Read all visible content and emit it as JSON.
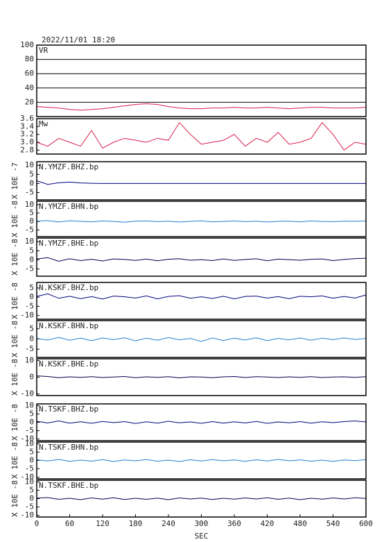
{
  "chart_data": [
    {
      "type": "line",
      "title": "2022/11/01 18:20",
      "x": [
        0,
        20,
        40,
        60,
        80,
        100,
        120,
        140,
        160,
        180,
        200,
        220,
        240,
        260,
        280,
        300,
        320,
        340,
        360,
        380,
        400,
        420,
        440,
        460,
        480,
        500,
        520,
        540,
        560,
        580,
        600
      ],
      "xlim": [
        0,
        600
      ],
      "ylim": [
        0,
        100
      ],
      "yticks": [
        20,
        40,
        60,
        80,
        100
      ],
      "grid": true,
      "series": [
        {
          "name": "VR",
          "color": "#d81b4a",
          "values": [
            14,
            13,
            12,
            10,
            9,
            10,
            11,
            13,
            15,
            17,
            18,
            17,
            14,
            12,
            11,
            11,
            12,
            12,
            13,
            12,
            12,
            13,
            12,
            11,
            12,
            13,
            13,
            12,
            12,
            12,
            13
          ]
        }
      ]
    },
    {
      "type": "line",
      "x": [
        0,
        20,
        40,
        60,
        80,
        100,
        120,
        140,
        160,
        180,
        200,
        220,
        240,
        260,
        280,
        300,
        320,
        340,
        360,
        380,
        400,
        420,
        440,
        460,
        480,
        500,
        520,
        540,
        560,
        580,
        600
      ],
      "xlim": [
        0,
        600
      ],
      "ylim": [
        2.7,
        3.6
      ],
      "yticks": [
        {
          "value": 2.8,
          "label": "2.8"
        },
        {
          "value": 3,
          "label": "3.0"
        },
        {
          "value": 3.2,
          "label": "3.2"
        },
        {
          "value": 3.4,
          "label": "3.4"
        },
        {
          "value": 3.6,
          "label": "3.6"
        }
      ],
      "series": [
        {
          "name": "Mw",
          "color": "#d81b4a",
          "values": [
            3.0,
            2.9,
            3.1,
            3.0,
            2.9,
            3.3,
            2.85,
            3.0,
            3.1,
            3.05,
            3.0,
            3.1,
            3.05,
            3.5,
            3.2,
            2.95,
            3.0,
            3.05,
            3.2,
            2.9,
            3.1,
            3.0,
            3.25,
            2.95,
            3.0,
            3.1,
            3.5,
            3.2,
            2.8,
            3.0,
            2.95
          ]
        }
      ]
    },
    {
      "type": "line",
      "ylabel": "X 10E -7",
      "x": [
        0,
        20,
        40,
        60,
        80,
        100,
        120,
        140,
        160,
        180,
        200,
        220,
        240,
        260,
        280,
        300,
        320,
        340,
        360,
        380,
        400,
        420,
        440,
        460,
        480,
        500,
        520,
        540,
        560,
        580,
        600
      ],
      "xlim": [
        0,
        600
      ],
      "ylim": [
        -9,
        12
      ],
      "yticks": [
        -5,
        0,
        5,
        10
      ],
      "series": [
        {
          "name": "N.YMZF.BHZ.bp",
          "color": "#00007f",
          "values": [
            1.5,
            -0.5,
            0.4,
            0.8,
            0.3,
            0.1,
            0,
            0,
            0,
            0,
            0,
            0,
            0,
            0,
            0,
            0,
            0,
            0,
            0,
            0,
            0,
            0,
            0,
            0,
            0,
            0,
            0,
            0,
            0,
            0,
            0
          ]
        }
      ]
    },
    {
      "type": "line",
      "ylabel": "X 10E -8",
      "x": [
        0,
        20,
        40,
        60,
        80,
        100,
        120,
        140,
        160,
        180,
        200,
        220,
        240,
        260,
        280,
        300,
        320,
        340,
        360,
        380,
        400,
        420,
        440,
        460,
        480,
        500,
        520,
        540,
        560,
        580,
        600
      ],
      "xlim": [
        0,
        600
      ],
      "ylim": [
        -9,
        12
      ],
      "yticks": [
        -5,
        0,
        5,
        10
      ],
      "series": [
        {
          "name": "N.YMZF.BHN.bp",
          "color": "#1f7fd0",
          "values": [
            0.2,
            0.5,
            -0.3,
            0.4,
            0.1,
            -0.2,
            0.3,
            0,
            -0.4,
            0.2,
            0.3,
            -0.1,
            0.2,
            -0.3,
            0.1,
            0.4,
            -0.2,
            0,
            0.3,
            -0.1,
            0.2,
            -0.3,
            0.1,
            0.2,
            -0.2,
            0.3,
            0,
            -0.1,
            0.2,
            0.1,
            0.3
          ]
        }
      ]
    },
    {
      "type": "line",
      "ylabel": "X 10E -8",
      "x": [
        0,
        20,
        40,
        60,
        80,
        100,
        120,
        140,
        160,
        180,
        200,
        220,
        240,
        260,
        280,
        300,
        320,
        340,
        360,
        380,
        400,
        420,
        440,
        460,
        480,
        500,
        520,
        540,
        560,
        580,
        600
      ],
      "xlim": [
        0,
        600
      ],
      "ylim": [
        -9,
        12
      ],
      "yticks": [
        -5,
        0,
        5,
        10
      ],
      "series": [
        {
          "name": "N.YMZF.BHE.bp",
          "color": "#000050",
          "values": [
            0.5,
            1.2,
            -0.8,
            0.6,
            -0.4,
            0.3,
            -0.6,
            0.5,
            0.2,
            -0.3,
            0.4,
            -0.5,
            0.3,
            0.6,
            -0.2,
            0.1,
            -0.4,
            0.5,
            -0.3,
            0.2,
            0.6,
            -0.5,
            0.4,
            0.1,
            -0.2,
            0.3,
            0.5,
            -0.4,
            0.2,
            0.7,
            0.9
          ]
        }
      ]
    },
    {
      "type": "line",
      "ylabel": "X 10E -8",
      "x": [
        0,
        20,
        40,
        60,
        80,
        100,
        120,
        140,
        160,
        180,
        200,
        220,
        240,
        260,
        280,
        300,
        320,
        340,
        360,
        380,
        400,
        420,
        440,
        460,
        480,
        500,
        520,
        540,
        560,
        580,
        600
      ],
      "xlim": [
        0,
        600
      ],
      "ylim": [
        -12,
        8
      ],
      "yticks": [
        -10,
        -5,
        0,
        5
      ],
      "series": [
        {
          "name": "N.KSKF.BHZ.bp",
          "color": "#00007f",
          "values": [
            0.4,
            1.8,
            -0.6,
            0.5,
            -0.8,
            0.3,
            -1.0,
            0.6,
            0.2,
            -0.5,
            0.7,
            -0.9,
            0.4,
            0.8,
            -0.6,
            0.2,
            -0.7,
            0.5,
            -0.9,
            0.4,
            0.6,
            -0.5,
            0.3,
            -0.8,
            0.5,
            0.2,
            0.7,
            -0.6,
            0.4,
            -0.5,
            1.2
          ]
        }
      ]
    },
    {
      "type": "line",
      "ylabel": "X 10E -8",
      "x": [
        0,
        20,
        40,
        60,
        80,
        100,
        120,
        140,
        160,
        180,
        200,
        220,
        240,
        260,
        280,
        300,
        320,
        340,
        360,
        380,
        400,
        420,
        440,
        460,
        480,
        500,
        520,
        540,
        560,
        580,
        600
      ],
      "xlim": [
        0,
        600
      ],
      "ylim": [
        -9,
        9
      ],
      "yticks": [
        -5,
        0,
        5
      ],
      "series": [
        {
          "name": "N.KSKF.BHN.bp",
          "color": "#1f7fd0",
          "values": [
            0.3,
            -0.5,
            0.8,
            -0.6,
            0.4,
            -0.8,
            0.5,
            -0.3,
            0.6,
            -0.9,
            0.4,
            -0.6,
            0.7,
            -0.4,
            0.3,
            -1.2,
            0.5,
            -0.7,
            0.4,
            -0.5,
            0.6,
            -0.8,
            0.3,
            -0.4,
            0.5,
            -0.6,
            0.4,
            -0.3,
            0.5,
            -0.2,
            0.3
          ]
        }
      ]
    },
    {
      "type": "line",
      "ylabel": "X 10E -8",
      "x": [
        0,
        20,
        40,
        60,
        80,
        100,
        120,
        140,
        160,
        180,
        200,
        220,
        240,
        260,
        280,
        300,
        320,
        340,
        360,
        380,
        400,
        420,
        440,
        460,
        480,
        500,
        520,
        540,
        560,
        580,
        600
      ],
      "xlim": [
        0,
        600
      ],
      "ylim": [
        -11,
        11
      ],
      "yticks": [
        -10,
        0,
        10
      ],
      "series": [
        {
          "name": "N.KSKF.BHE.bp",
          "color": "#000050",
          "values": [
            0.8,
            0.4,
            -0.3,
            0.2,
            -0.1,
            0.3,
            -0.2,
            0.1,
            0.4,
            -0.3,
            0.2,
            -0.1,
            0.3,
            -0.4,
            0.2,
            0.1,
            -0.3,
            0.2,
            0.4,
            -0.2,
            0.3,
            0.1,
            -0.2,
            0.2,
            -0.1,
            0.3,
            -0.2,
            0.1,
            0.2,
            -0.1,
            0.3
          ]
        }
      ]
    },
    {
      "type": "line",
      "ylabel": "X 10E -8",
      "x": [
        0,
        20,
        40,
        60,
        80,
        100,
        120,
        140,
        160,
        180,
        200,
        220,
        240,
        260,
        280,
        300,
        320,
        340,
        360,
        380,
        400,
        420,
        440,
        460,
        480,
        500,
        520,
        540,
        560,
        580,
        600
      ],
      "xlim": [
        0,
        600
      ],
      "ylim": [
        -11,
        11
      ],
      "yticks": [
        -10,
        -5,
        0,
        5,
        10
      ],
      "series": [
        {
          "name": "N.TSKF.BHZ.bp",
          "color": "#00007f",
          "values": [
            0.6,
            -0.4,
            0.8,
            -0.5,
            0.3,
            -0.6,
            0.5,
            -0.2,
            0.4,
            -0.7,
            0.3,
            -0.5,
            0.6,
            -0.3,
            0.2,
            -0.6,
            0.4,
            -0.5,
            0.3,
            -0.4,
            0.5,
            -0.6,
            0.2,
            -0.3,
            0.4,
            -0.5,
            0.3,
            -0.2,
            0.4,
            0.8,
            0.2
          ]
        }
      ]
    },
    {
      "type": "line",
      "ylabel": "X 10E -8",
      "x": [
        0,
        20,
        40,
        60,
        80,
        100,
        120,
        140,
        160,
        180,
        200,
        220,
        240,
        260,
        280,
        300,
        320,
        340,
        360,
        380,
        400,
        420,
        440,
        460,
        480,
        500,
        520,
        540,
        560,
        580,
        600
      ],
      "xlim": [
        0,
        600
      ],
      "ylim": [
        -11,
        11
      ],
      "yticks": [
        -10,
        -5,
        0,
        5,
        10
      ],
      "series": [
        {
          "name": "N.TSKF.BHN.bp",
          "color": "#1f7fd0",
          "values": [
            0.4,
            -0.3,
            0.6,
            -0.5,
            0.2,
            -0.4,
            0.5,
            -0.6,
            0.3,
            -0.2,
            0.5,
            -0.4,
            0.2,
            -0.6,
            0.4,
            -0.3,
            0.5,
            -0.2,
            0.3,
            -0.5,
            0.4,
            -0.3,
            0.6,
            -0.2,
            0.3,
            -0.4,
            0.2,
            -0.5,
            0.3,
            -0.1,
            0.5
          ]
        }
      ]
    },
    {
      "type": "line",
      "ylabel": "X 10E -8",
      "xlabel": "SEC",
      "x": [
        0,
        20,
        40,
        60,
        80,
        100,
        120,
        140,
        160,
        180,
        200,
        220,
        240,
        260,
        280,
        300,
        320,
        340,
        360,
        380,
        400,
        420,
        440,
        460,
        480,
        500,
        520,
        540,
        560,
        580,
        600
      ],
      "xlim": [
        0,
        600
      ],
      "xticks": [
        0,
        60,
        120,
        180,
        240,
        300,
        360,
        420,
        480,
        540,
        600
      ],
      "ylim": [
        -11,
        11
      ],
      "yticks": [
        -10,
        -5,
        0,
        5,
        10
      ],
      "series": [
        {
          "name": "N.TSKF.BHE.bp",
          "color": "#000050",
          "values": [
            0.3,
            0.6,
            -0.4,
            0.2,
            -0.6,
            0.4,
            -0.3,
            0.5,
            -0.5,
            0.2,
            -0.4,
            0.3,
            -0.6,
            0.4,
            -0.2,
            0.3,
            -0.5,
            0.2,
            -0.3,
            0.4,
            -0.2,
            0.5,
            -0.4,
            0.3,
            -0.6,
            0.2,
            -0.3,
            0.4,
            -0.2,
            0.5,
            0.1
          ]
        }
      ]
    }
  ]
}
